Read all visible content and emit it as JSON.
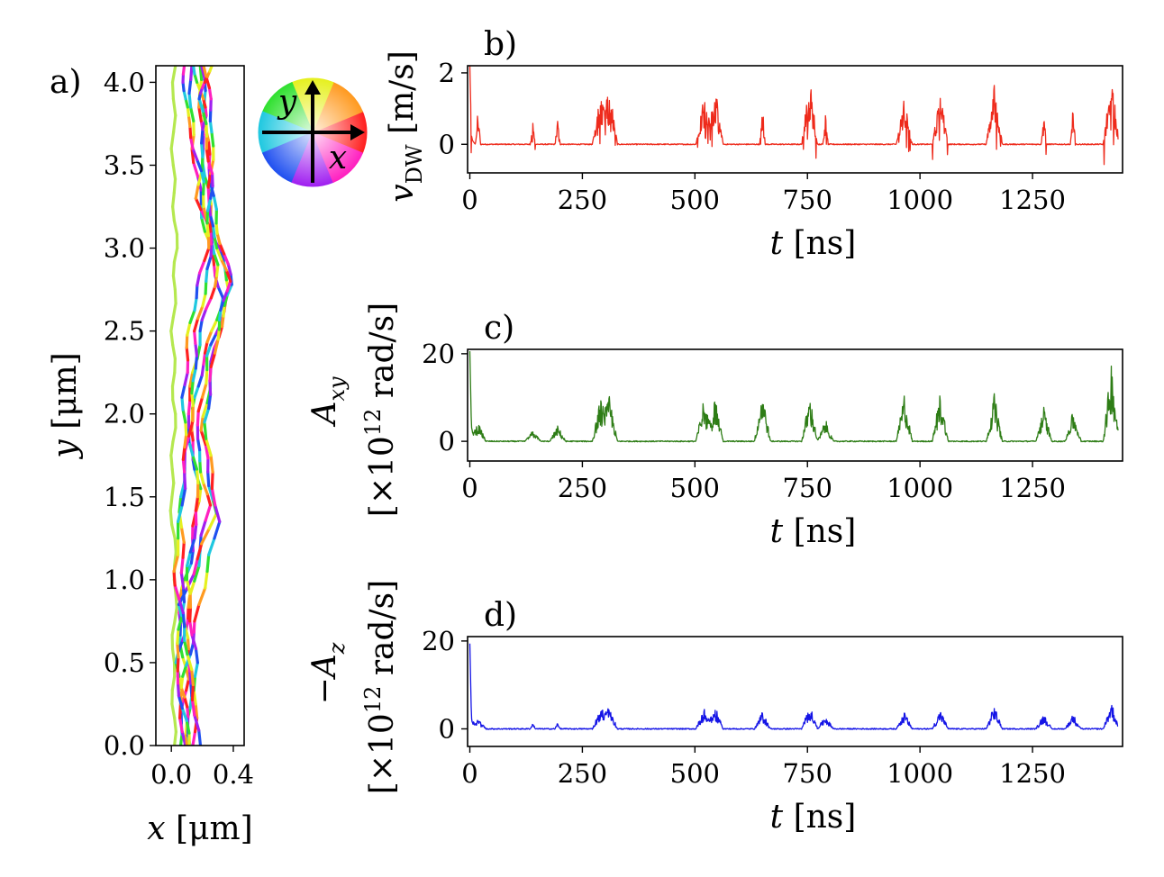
{
  "chart_data": [
    {
      "id": "a",
      "type": "line",
      "panel_label": "a)",
      "xlabel": "x [μm]",
      "ylabel": "y [μm]",
      "xlim": [
        -0.1,
        0.47
      ],
      "ylim": [
        0.0,
        4.1
      ],
      "xticks": [
        0.0,
        0.4
      ],
      "xtick_labels": [
        "0.0",
        "0.4"
      ],
      "yticks": [
        0.0,
        0.5,
        1.0,
        1.5,
        2.0,
        2.5,
        3.0,
        3.5,
        4.0
      ],
      "ytick_labels": [
        "0.0",
        "0.5",
        "1.0",
        "1.5",
        "2.0",
        "2.5",
        "3.0",
        "3.5",
        "4.0"
      ],
      "grid": false,
      "series": [
        {
          "points": [
            [
              0.02,
              0.0
            ],
            [
              0.01,
              0.5
            ],
            [
              0.03,
              1.0
            ],
            [
              0.0,
              1.5
            ],
            [
              0.02,
              2.0
            ],
            [
              0.01,
              2.5
            ],
            [
              0.03,
              3.0
            ],
            [
              0.01,
              3.5
            ],
            [
              0.02,
              4.1
            ]
          ],
          "color": "#b5e84f"
        },
        {
          "points": [
            [
              0.05,
              0.0
            ],
            [
              0.1,
              0.4
            ],
            [
              0.04,
              0.8
            ],
            [
              0.12,
              1.1
            ],
            [
              0.18,
              1.55
            ],
            [
              0.12,
              1.9
            ],
            [
              0.2,
              2.3
            ],
            [
              0.33,
              2.7
            ],
            [
              0.22,
              3.1
            ],
            [
              0.14,
              3.6
            ],
            [
              0.12,
              4.1
            ]
          ],
          "color": "#3a3ae0"
        },
        {
          "points": [
            [
              0.08,
              0.0
            ],
            [
              0.04,
              0.5
            ],
            [
              0.13,
              0.9
            ],
            [
              0.24,
              1.45
            ],
            [
              0.16,
              1.85
            ],
            [
              0.24,
              2.35
            ],
            [
              0.38,
              2.75
            ],
            [
              0.27,
              3.1
            ],
            [
              0.2,
              3.6
            ],
            [
              0.18,
              4.1
            ]
          ],
          "color": "#e040c0"
        },
        {
          "points": [
            [
              0.1,
              0.0
            ],
            [
              0.13,
              0.45
            ],
            [
              0.06,
              0.85
            ],
            [
              0.28,
              1.4
            ],
            [
              0.2,
              1.9
            ],
            [
              0.28,
              2.4
            ],
            [
              0.39,
              2.78
            ],
            [
              0.29,
              3.15
            ],
            [
              0.23,
              3.65
            ],
            [
              0.2,
              4.1
            ]
          ],
          "color": "#30b0e0"
        },
        {
          "points": [
            [
              0.13,
              0.0
            ],
            [
              0.07,
              0.35
            ],
            [
              0.16,
              0.75
            ],
            [
              0.3,
              1.35
            ],
            [
              0.22,
              1.95
            ],
            [
              0.29,
              2.45
            ],
            [
              0.37,
              2.8
            ],
            [
              0.24,
              3.2
            ],
            [
              0.27,
              3.7
            ],
            [
              0.22,
              4.1
            ]
          ],
          "color": "#40d070"
        },
        {
          "points": [
            [
              0.15,
              0.0
            ],
            [
              0.16,
              0.5
            ],
            [
              0.1,
              1.0
            ],
            [
              0.18,
              1.5
            ],
            [
              0.1,
              2.0
            ],
            [
              0.19,
              2.5
            ],
            [
              0.31,
              2.9
            ],
            [
              0.17,
              3.3
            ],
            [
              0.22,
              3.8
            ],
            [
              0.15,
              4.1
            ]
          ],
          "color": "#9b40e0"
        },
        {
          "points": [
            [
              0.12,
              0.0
            ],
            [
              0.03,
              0.45
            ],
            [
              0.08,
              0.95
            ],
            [
              0.06,
              1.5
            ],
            [
              0.14,
              2.05
            ],
            [
              0.16,
              2.5
            ],
            [
              0.26,
              2.95
            ],
            [
              0.2,
              3.4
            ],
            [
              0.1,
              3.8
            ],
            [
              0.08,
              4.1
            ]
          ],
          "color": "#e05040"
        },
        {
          "points": [
            [
              0.18,
              0.0
            ],
            [
              0.11,
              0.55
            ],
            [
              0.02,
              1.05
            ],
            [
              0.09,
              1.65
            ],
            [
              0.08,
              2.1
            ],
            [
              0.12,
              2.55
            ],
            [
              0.23,
              3.0
            ],
            [
              0.26,
              3.45
            ],
            [
              0.19,
              3.9
            ],
            [
              0.25,
              4.1
            ]
          ],
          "color": "#7ad040"
        }
      ]
    },
    {
      "id": "b",
      "type": "line",
      "panel_label": "b)",
      "xlabel": "t [ns]",
      "ylabel": "v_DW [m/s]",
      "xlim": [
        -5,
        1450
      ],
      "ylim": [
        -0.8,
        2.2
      ],
      "xticks": [
        0,
        250,
        500,
        750,
        1000,
        1250
      ],
      "xtick_labels": [
        "0",
        "250",
        "500",
        "750",
        "1000",
        "1250"
      ],
      "yticks": [
        0,
        2
      ],
      "ytick_labels": [
        "0",
        "2"
      ],
      "grid": false,
      "color": "#ee2a1b",
      "baseline": 0.0,
      "initial_peak": 2.2,
      "initial_dip": -0.8,
      "spikes": [
        [
          18,
          1.0
        ],
        [
          140,
          0.6
        ],
        [
          195,
          0.7
        ],
        [
          290,
          1.55
        ],
        [
          310,
          1.7
        ],
        [
          520,
          1.45
        ],
        [
          545,
          1.6
        ],
        [
          650,
          1.2
        ],
        [
          755,
          1.9
        ],
        [
          790,
          0.9
        ],
        [
          965,
          1.3
        ],
        [
          1045,
          1.45
        ],
        [
          1165,
          1.75
        ],
        [
          1275,
          1.0
        ],
        [
          1340,
          1.05
        ],
        [
          1425,
          2.0
        ]
      ]
    },
    {
      "id": "c",
      "type": "line",
      "panel_label": "c)",
      "xlabel": "t [ns]",
      "ylabel_line1": "A_xy",
      "ylabel_line2": "[×10^12 rad/s]",
      "xlim": [
        -5,
        1450
      ],
      "ylim": [
        -4.5,
        21
      ],
      "xticks": [
        0,
        250,
        500,
        750,
        1000,
        1250
      ],
      "xtick_labels": [
        "0",
        "250",
        "500",
        "750",
        "1000",
        "1250"
      ],
      "yticks": [
        0,
        20
      ],
      "ytick_labels": [
        "0",
        "20"
      ],
      "grid": false,
      "color": "#2e7d16",
      "baseline": 0.0,
      "initial_peak": 20.5,
      "spikes": [
        [
          18,
          4.5
        ],
        [
          140,
          2.5
        ],
        [
          195,
          3.5
        ],
        [
          290,
          10
        ],
        [
          310,
          10.5
        ],
        [
          520,
          10
        ],
        [
          545,
          10.5
        ],
        [
          650,
          12
        ],
        [
          755,
          10.5
        ],
        [
          790,
          5
        ],
        [
          965,
          11
        ],
        [
          1045,
          11.5
        ],
        [
          1165,
          11
        ],
        [
          1275,
          8
        ],
        [
          1340,
          7
        ],
        [
          1425,
          18.5
        ]
      ]
    },
    {
      "id": "d",
      "type": "line",
      "panel_label": "d)",
      "xlabel": "t [ns]",
      "ylabel_line1": "−A_z",
      "ylabel_line2": "[×10^12 rad/s]",
      "xlim": [
        -5,
        1450
      ],
      "ylim": [
        -4,
        21
      ],
      "xticks": [
        0,
        250,
        500,
        750,
        1000,
        1250
      ],
      "xtick_labels": [
        "0",
        "250",
        "500",
        "750",
        "1000",
        "1250"
      ],
      "yticks": [
        0,
        20
      ],
      "ytick_labels": [
        "0",
        "20"
      ],
      "grid": false,
      "color": "#1414e6",
      "baseline": 0.0,
      "initial_peak": 19.5,
      "spikes": [
        [
          18,
          2.5
        ],
        [
          140,
          1.5
        ],
        [
          195,
          1.5
        ],
        [
          290,
          5
        ],
        [
          310,
          5.5
        ],
        [
          520,
          5
        ],
        [
          545,
          5
        ],
        [
          650,
          4
        ],
        [
          755,
          5.5
        ],
        [
          790,
          3
        ],
        [
          965,
          4
        ],
        [
          1045,
          4.5
        ],
        [
          1165,
          5.5
        ],
        [
          1275,
          3.5
        ],
        [
          1340,
          3.5
        ],
        [
          1425,
          6.5
        ]
      ]
    }
  ],
  "colorwheel": {
    "label_x": "x",
    "label_y": "y",
    "colors": [
      "#ff2020",
      "#ff9a20",
      "#e6f020",
      "#30e030",
      "#20c8e0",
      "#2050f0",
      "#a020f0",
      "#ff20c0"
    ]
  }
}
